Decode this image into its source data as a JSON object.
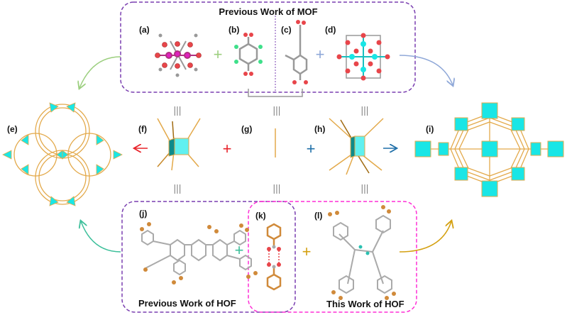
{
  "titles": {
    "mof": "Previous Work of MOF",
    "hof_previous": "Previous Work of HOF",
    "hof_this": "This Work of HOF"
  },
  "panels": {
    "a": "(a)",
    "b": "(b)",
    "c": "(c)",
    "d": "(d)",
    "e": "(e)",
    "f": "(f)",
    "g": "(g)",
    "h": "(h)",
    "i": "(i)",
    "j": "(j)",
    "k": "(k)",
    "l": "(l)"
  },
  "symbols": {
    "plus": "+",
    "equiv": "|||"
  },
  "colors": {
    "mof_box": "#7a3fb0",
    "hof_this_box": "#ff2fd6",
    "cyan_node": "#19e6e6",
    "linker": "#e3a94a",
    "oxygen": "#e8454a",
    "carbon": "#9a9a9a",
    "arrow_red": "#e8232a",
    "arrow_blue": "#1f6fa8",
    "arrow_green": "#9ccf7f",
    "arrow_lightblue": "#8fa8d8",
    "arrow_teal": "#3cbf9a",
    "arrow_gold": "#d4a010"
  }
}
